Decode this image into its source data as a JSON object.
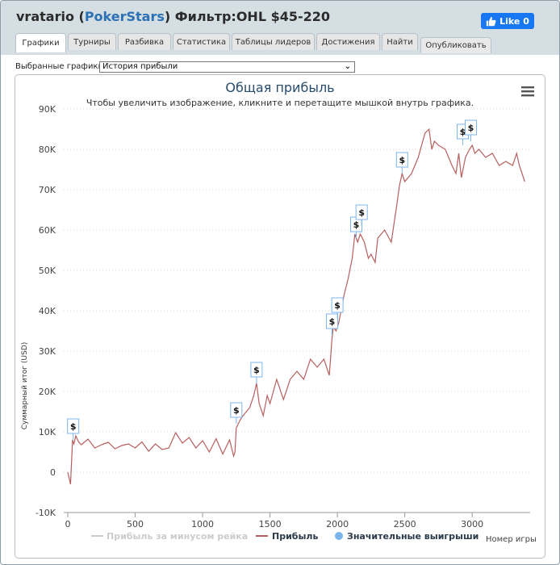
{
  "header": {
    "player": "vratario",
    "site": "PokerStars",
    "filter": "Фильтр:OHL $45-220",
    "like_label": "Like 0"
  },
  "tabs": [
    {
      "label": "Графики",
      "active": true
    },
    {
      "label": "Турниры",
      "active": false
    },
    {
      "label": "Разбивка",
      "active": false
    },
    {
      "label": "Статистика",
      "active": false
    },
    {
      "label": "Таблицы лидеров",
      "active": false
    },
    {
      "label": "Достижения",
      "active": false
    },
    {
      "label": "Найти",
      "active": false
    }
  ],
  "publish_label": "Опубликовать",
  "selector": {
    "label": "Выбранные графики:",
    "value": "История прибыли"
  },
  "chart_data": {
    "type": "line",
    "title": "Общая прибыль",
    "subtitle": "Чтобы увеличить изображение, кликните и перетащите мышкой внутрь графика.",
    "xlabel": "Номер игры",
    "ylabel": "Суммарный итог (USD)",
    "xlim": [
      -30,
      3430
    ],
    "ylim": [
      -10000,
      90000
    ],
    "x_ticks": [
      0,
      500,
      1000,
      1500,
      2000,
      2500,
      3000
    ],
    "x_tick_labels": [
      "0",
      "500",
      "1000",
      "1500",
      "2000",
      "2500",
      "3000"
    ],
    "y_ticks": [
      -10000,
      0,
      10000,
      20000,
      30000,
      40000,
      50000,
      60000,
      70000,
      80000,
      90000
    ],
    "y_tick_labels": [
      "-10K",
      "0",
      "10K",
      "20K",
      "30K",
      "40K",
      "50K",
      "60K",
      "70K",
      "80K",
      "90K"
    ],
    "series": [
      {
        "name": "Прибыль за минусом рейка",
        "color": "#cccccc",
        "visible": false
      },
      {
        "name": "Прибыль",
        "color": "#b85f5f",
        "x": [
          0,
          20,
          35,
          45,
          60,
          80,
          100,
          150,
          200,
          250,
          300,
          350,
          400,
          450,
          500,
          550,
          600,
          650,
          700,
          750,
          800,
          850,
          900,
          950,
          1000,
          1050,
          1100,
          1150,
          1200,
          1230,
          1240,
          1250,
          1280,
          1300,
          1350,
          1380,
          1400,
          1420,
          1450,
          1480,
          1500,
          1550,
          1600,
          1650,
          1700,
          1750,
          1800,
          1850,
          1900,
          1940,
          1960,
          1970,
          1990,
          2010,
          2050,
          2080,
          2110,
          2130,
          2150,
          2170,
          2200,
          2230,
          2250,
          2280,
          2300,
          2350,
          2400,
          2440,
          2460,
          2480,
          2500,
          2550,
          2600,
          2650,
          2680,
          2700,
          2720,
          2750,
          2800,
          2850,
          2880,
          2900,
          2920,
          2950,
          2980,
          3000,
          3020,
          3050,
          3100,
          3150,
          3200,
          3250,
          3300,
          3330,
          3350,
          3370,
          3390
        ],
        "values": [
          0,
          -3000,
          8000,
          7000,
          9000,
          7500,
          6800,
          8200,
          6000,
          6800,
          7400,
          5800,
          6600,
          7000,
          6000,
          7500,
          5200,
          7000,
          5600,
          6000,
          9800,
          7200,
          8600,
          6000,
          7800,
          5000,
          8300,
          4500,
          8000,
          4000,
          5000,
          11000,
          13000,
          14000,
          16000,
          19000,
          22000,
          17000,
          14000,
          19000,
          17000,
          23000,
          18000,
          23000,
          25000,
          23000,
          28000,
          26000,
          28000,
          24000,
          33000,
          36000,
          35000,
          37000,
          44000,
          48000,
          53000,
          59000,
          57000,
          59000,
          57000,
          53000,
          54000,
          52000,
          58000,
          60000,
          57000,
          66000,
          71000,
          74000,
          72000,
          74000,
          78000,
          84000,
          85000,
          80000,
          82000,
          81000,
          80000,
          76000,
          74000,
          79000,
          73000,
          78000,
          80000,
          81000,
          79000,
          80000,
          78000,
          79000,
          76000,
          77000,
          76000,
          79000,
          76000,
          74000,
          72000
        ]
      },
      {
        "name": "Значительные выигрыши",
        "color": "#7cb5ec",
        "marker": "circle"
      }
    ],
    "flags": [
      {
        "label": "$",
        "x": 40,
        "y": 8000
      },
      {
        "label": "$",
        "x": 1250,
        "y": 12000
      },
      {
        "label": "$",
        "x": 1400,
        "y": 22000
      },
      {
        "label": "$",
        "x": 1960,
        "y": 34000
      },
      {
        "label": "$",
        "x": 2000,
        "y": 38000
      },
      {
        "label": "$",
        "x": 2140,
        "y": 58000
      },
      {
        "label": "$",
        "x": 2180,
        "y": 61000
      },
      {
        "label": "$",
        "x": 2480,
        "y": 74000
      },
      {
        "label": "$",
        "x": 2930,
        "y": 81000
      },
      {
        "label": "$",
        "x": 2990,
        "y": 82000
      }
    ]
  }
}
